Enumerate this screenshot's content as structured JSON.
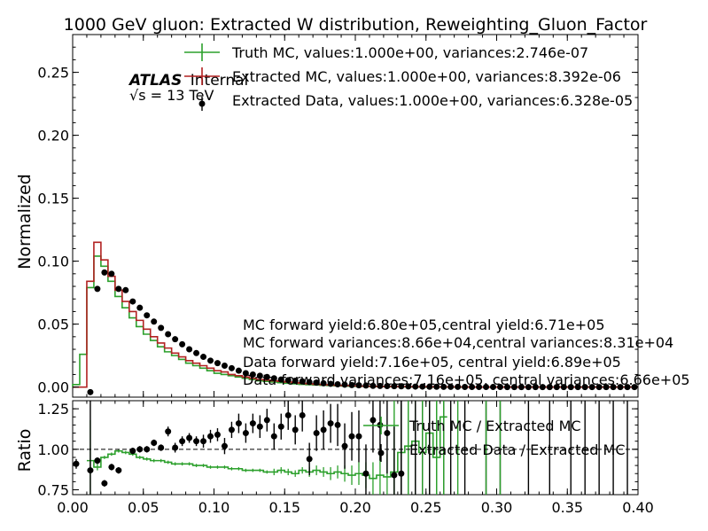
{
  "chart_data": {
    "type": "line",
    "title": "1000 GeV gluon: Extracted W distribution, Reweighting_Gluon_Factor",
    "atlas": {
      "label": "ATLAS",
      "sublabel": "Internal",
      "energy_prefix": "√s = ",
      "energy": "13 TeV"
    },
    "xlabel": "",
    "xlim": [
      0.0,
      0.4
    ],
    "xticks": [
      "0.00",
      "0.05",
      "0.10",
      "0.15",
      "0.20",
      "0.25",
      "0.30",
      "0.35",
      "0.40"
    ],
    "top": {
      "ylabel": "Normalized",
      "ylim": [
        -0.008,
        0.28
      ],
      "yticks": [
        "0.00",
        "0.05",
        "0.10",
        "0.15",
        "0.20",
        "0.25"
      ],
      "legend": [
        {
          "label": "Truth MC, values:1.000e+00, variances:2.746e-07",
          "color": "#2ca02c",
          "marker": "errorbar"
        },
        {
          "label": "Extracted MC, values:1.000e+00, variances:8.392e-06",
          "color": "#b22222",
          "marker": "errorbar"
        },
        {
          "label": "Extracted Data, values:1.000e+00, variances:6.328e-05",
          "color": "#000000",
          "marker": "dot"
        }
      ],
      "annotations": [
        "MC forward yield:6.80e+05,central yield:6.71e+05",
        "MC forward variances:8.66e+04,central variances:8.31e+04",
        "Data forward yield:7.16e+05, central yield:6.89e+05",
        "Data forward variances:7.16e+05, central variances:6.66e+05"
      ],
      "bin_width": 0.005,
      "series": [
        {
          "name": "Truth MC",
          "color": "#2ca02c",
          "bin_edges_start": 0.0,
          "values": [
            0.002,
            0.026,
            0.079,
            0.104,
            0.096,
            0.084,
            0.072,
            0.063,
            0.055,
            0.048,
            0.042,
            0.037,
            0.032,
            0.028,
            0.025,
            0.022,
            0.019,
            0.017,
            0.015,
            0.013,
            0.011,
            0.01,
            0.009,
            0.008,
            0.007,
            0.006,
            0.005,
            0.0045,
            0.004,
            0.0035,
            0.003,
            0.0026,
            0.0022,
            0.0019,
            0.0016,
            0.0014,
            0.0012,
            0.001,
            0.0008,
            0.0007,
            0.0006,
            0.0005,
            0.0004,
            0.0003,
            0.0003,
            0.0002,
            0.0002,
            0.0001,
            0.0001,
            0.0001,
            0.0,
            0.0,
            0.0,
            0.0,
            0.0,
            0.0,
            0.0,
            0.0,
            0.0,
            0.0,
            0.0,
            0.0,
            0.0,
            0.0,
            0.0,
            0.0,
            0.0,
            0.0,
            0.0,
            0.0,
            0.0,
            0.0,
            0.0,
            0.0,
            0.0,
            0.0,
            0.0,
            0.0,
            0.0,
            0.0
          ]
        },
        {
          "name": "Extracted MC",
          "color": "#b22222",
          "bin_edges_start": 0.0,
          "values": [
            0.0,
            0.0,
            0.084,
            0.115,
            0.101,
            0.088,
            0.077,
            0.068,
            0.06,
            0.053,
            0.046,
            0.04,
            0.035,
            0.031,
            0.027,
            0.024,
            0.021,
            0.019,
            0.017,
            0.015,
            0.013,
            0.012,
            0.01,
            0.009,
            0.008,
            0.007,
            0.006,
            0.0055,
            0.005,
            0.0045,
            0.004,
            0.0035,
            0.003,
            0.0026,
            0.0022,
            0.0019,
            0.0016,
            0.0014,
            0.0012,
            0.001,
            0.0008,
            0.0007,
            0.0006,
            0.0005,
            0.0004,
            0.0004,
            0.0003,
            0.0003,
            0.0002,
            0.0002,
            0.0002,
            0.0001,
            0.0001,
            0.0001,
            0.0001,
            0.0001,
            0.0,
            0.0,
            0.0,
            0.0,
            0.0,
            0.0,
            0.0,
            0.0,
            0.0,
            0.0,
            0.0,
            0.0,
            0.0,
            0.0,
            0.0,
            0.0,
            0.0,
            0.0,
            0.0,
            0.0,
            0.0,
            0.0,
            0.0,
            0.0
          ]
        },
        {
          "name": "Extracted Data",
          "color": "#000000",
          "x": [
            0.0025,
            0.0075,
            0.0125,
            0.0175,
            0.0225,
            0.0275,
            0.0325,
            0.0375,
            0.0425,
            0.0475,
            0.0525,
            0.0575,
            0.0625,
            0.0675,
            0.0725,
            0.0775,
            0.0825,
            0.0875,
            0.0925,
            0.0975,
            0.1025,
            0.1075,
            0.1125,
            0.1175,
            0.1225,
            0.1275,
            0.1325,
            0.1375,
            0.1425,
            0.1475,
            0.1525,
            0.1575,
            0.1625,
            0.1675,
            0.1725,
            0.1775,
            0.1825,
            0.1875,
            0.1925,
            0.1975,
            0.2025,
            0.2075,
            0.2125,
            0.2175,
            0.2225,
            0.2275,
            0.2325,
            0.2375,
            0.2425,
            0.2475,
            0.2525,
            0.2575,
            0.2625,
            0.2675,
            0.2725,
            0.2775,
            0.2825,
            0.2875,
            0.2925,
            0.2975,
            0.3025,
            0.3075,
            0.3125,
            0.3175,
            0.3225,
            0.3275,
            0.3325,
            0.3375,
            0.3425,
            0.3475,
            0.3525,
            0.3575,
            0.3625,
            0.3675,
            0.3725,
            0.3775,
            0.3825,
            0.3875,
            0.3925,
            0.3975
          ],
          "values": [
            0.0,
            0.0,
            -0.004,
            0.078,
            0.091,
            0.09,
            0.078,
            0.077,
            0.068,
            0.063,
            0.057,
            0.052,
            0.047,
            0.042,
            0.038,
            0.034,
            0.03,
            0.027,
            0.024,
            0.021,
            0.019,
            0.017,
            0.015,
            0.013,
            0.011,
            0.01,
            0.009,
            0.008,
            0.007,
            0.006,
            0.0055,
            0.005,
            0.0045,
            0.004,
            0.0035,
            0.003,
            0.0026,
            0.0022,
            0.0019,
            0.0016,
            0.0014,
            0.0012,
            0.001,
            0.0009,
            0.0008,
            0.0007,
            0.0006,
            0.0005,
            0.0004,
            0.0004,
            0.0003,
            0.0003,
            0.0002,
            0.0002,
            0.0002,
            0.0001,
            0.0001,
            0.0001,
            0.0001,
            0.0001,
            0.0001,
            0.0,
            0.0,
            0.0,
            0.0,
            0.0,
            0.0,
            0.0,
            0.0,
            0.0,
            0.0,
            0.0,
            0.0,
            0.0,
            0.0,
            0.0,
            0.0,
            0.0,
            0.0,
            0.0
          ]
        }
      ]
    },
    "bottom": {
      "ylabel": "Ratio",
      "ylim": [
        0.72,
        1.3
      ],
      "yticks": [
        "0.75",
        "1.00",
        "1.25"
      ],
      "reference_line": 1.0,
      "legend": [
        {
          "label": "Truth MC / Extracted MC",
          "color": "#2ca02c",
          "marker": "errorbar"
        },
        {
          "label": "Extracted Data / Extracted MC",
          "color": "#000000",
          "marker": "dot"
        }
      ],
      "series": [
        {
          "name": "Truth MC / Extracted MC",
          "color": "#2ca02c",
          "bin_edges_start": 0.01,
          "bin_width": 0.005,
          "values": [
            0.93,
            0.89,
            0.95,
            0.97,
            0.99,
            0.98,
            0.97,
            0.95,
            0.94,
            0.93,
            0.93,
            0.92,
            0.91,
            0.91,
            0.91,
            0.9,
            0.9,
            0.89,
            0.89,
            0.89,
            0.88,
            0.88,
            0.87,
            0.87,
            0.87,
            0.86,
            0.86,
            0.87,
            0.86,
            0.85,
            0.87,
            0.86,
            0.87,
            0.86,
            0.85,
            0.86,
            0.85,
            0.84,
            0.85,
            0.84,
            0.82,
            0.84,
            0.83,
            0.86,
            0.98,
            1.02,
            1.05,
            0.98,
            1.1,
            0.95,
            1.2
          ],
          "errors": [
            0.25,
            0.02,
            0.01,
            0.01,
            0.01,
            0.01,
            0.01,
            0.01,
            0.01,
            0.01,
            0.01,
            0.01,
            0.01,
            0.01,
            0.01,
            0.01,
            0.01,
            0.01,
            0.01,
            0.01,
            0.01,
            0.01,
            0.01,
            0.01,
            0.01,
            0.01,
            0.02,
            0.02,
            0.02,
            0.02,
            0.02,
            0.03,
            0.03,
            0.03,
            0.04,
            0.04,
            0.05,
            0.06,
            0.07,
            0.08,
            0.1,
            0.12,
            0.14,
            0.2,
            0.3,
            0.4,
            0.5,
            0.5,
            0.5,
            0.5,
            0.5
          ]
        },
        {
          "name": "Extracted Data / Extracted MC",
          "color": "#000000",
          "x": [
            0.0025,
            0.0125,
            0.0175,
            0.0225,
            0.0275,
            0.0325,
            0.0425,
            0.0475,
            0.0525,
            0.0575,
            0.0625,
            0.0675,
            0.0725,
            0.0775,
            0.0825,
            0.0875,
            0.0925,
            0.0975,
            0.1025,
            0.1075,
            0.1125,
            0.1175,
            0.1225,
            0.1275,
            0.1325,
            0.1375,
            0.1425,
            0.1475,
            0.1525,
            0.1575,
            0.1625,
            0.1675,
            0.1725,
            0.1775,
            0.1825,
            0.1875,
            0.1925,
            0.1975,
            0.2025,
            0.2075,
            0.2125,
            0.2175,
            0.2225,
            0.2275,
            0.2325
          ],
          "values": [
            0.91,
            0.87,
            0.93,
            0.79,
            0.89,
            0.87,
            0.99,
            1.0,
            1.0,
            1.04,
            1.01,
            1.11,
            1.01,
            1.05,
            1.07,
            1.05,
            1.05,
            1.08,
            1.09,
            1.02,
            1.12,
            1.16,
            1.1,
            1.16,
            1.14,
            1.18,
            1.08,
            1.14,
            1.21,
            1.12,
            1.21,
            0.94,
            1.1,
            1.12,
            1.16,
            1.15,
            1.02,
            1.08,
            1.08,
            0.85,
            1.18,
            1.15,
            1.1,
            0.84,
            0.85
          ],
          "errors": [
            0.03,
            0.5,
            0.02,
            0.02,
            0.02,
            0.02,
            0.02,
            0.02,
            0.02,
            0.02,
            0.02,
            0.03,
            0.03,
            0.03,
            0.03,
            0.03,
            0.04,
            0.04,
            0.04,
            0.05,
            0.05,
            0.06,
            0.06,
            0.06,
            0.07,
            0.07,
            0.08,
            0.08,
            0.09,
            0.09,
            0.1,
            0.1,
            0.11,
            0.12,
            0.12,
            0.13,
            0.14,
            0.15,
            0.16,
            0.18,
            0.2,
            0.22,
            0.25,
            0.3,
            0.5
          ]
        }
      ],
      "extra_error_bars": [
        {
          "x": 0.2325,
          "low": 0.72,
          "high": 1.3,
          "color": "#000000"
        },
        {
          "x": 0.2425,
          "low": 0.72,
          "high": 1.3,
          "color": "#000000"
        },
        {
          "x": 0.2475,
          "low": 0.72,
          "high": 1.3,
          "color": "#000000"
        },
        {
          "x": 0.2525,
          "low": 0.72,
          "high": 1.3,
          "color": "#000000"
        },
        {
          "x": 0.2625,
          "low": 0.72,
          "high": 1.3,
          "color": "#000000"
        },
        {
          "x": 0.2675,
          "low": 0.72,
          "high": 1.3,
          "color": "#000000"
        },
        {
          "x": 0.2775,
          "low": 0.72,
          "high": 1.3,
          "color": "#000000"
        },
        {
          "x": 0.2925,
          "low": 0.72,
          "high": 1.3,
          "color": "#000000"
        },
        {
          "x": 0.3025,
          "low": 0.72,
          "high": 1.3,
          "color": "#000000"
        },
        {
          "x": 0.3225,
          "low": 0.72,
          "high": 1.3,
          "color": "#000000"
        },
        {
          "x": 0.3375,
          "low": 0.72,
          "high": 1.3,
          "color": "#000000"
        },
        {
          "x": 0.3525,
          "low": 0.72,
          "high": 1.3,
          "color": "#000000"
        },
        {
          "x": 0.3625,
          "low": 0.72,
          "high": 1.3,
          "color": "#000000"
        },
        {
          "x": 0.3725,
          "low": 0.72,
          "high": 1.3,
          "color": "#000000"
        },
        {
          "x": 0.3825,
          "low": 0.72,
          "high": 1.3,
          "color": "#000000"
        },
        {
          "x": 0.3925,
          "low": 0.72,
          "high": 1.3,
          "color": "#000000"
        },
        {
          "x": 0.2275,
          "low": 0.72,
          "high": 1.3,
          "color": "#2ca02c"
        },
        {
          "x": 0.2375,
          "low": 0.72,
          "high": 1.3,
          "color": "#2ca02c"
        },
        {
          "x": 0.2475,
          "low": 0.72,
          "high": 1.3,
          "color": "#2ca02c"
        },
        {
          "x": 0.2575,
          "low": 0.72,
          "high": 1.3,
          "color": "#2ca02c"
        },
        {
          "x": 0.2625,
          "low": 0.72,
          "high": 1.3,
          "color": "#2ca02c"
        },
        {
          "x": 0.2725,
          "low": 0.72,
          "high": 1.3,
          "color": "#2ca02c"
        },
        {
          "x": 0.2925,
          "low": 0.72,
          "high": 1.3,
          "color": "#2ca02c"
        },
        {
          "x": 0.3025,
          "low": 0.72,
          "high": 1.3,
          "color": "#2ca02c"
        }
      ]
    }
  }
}
